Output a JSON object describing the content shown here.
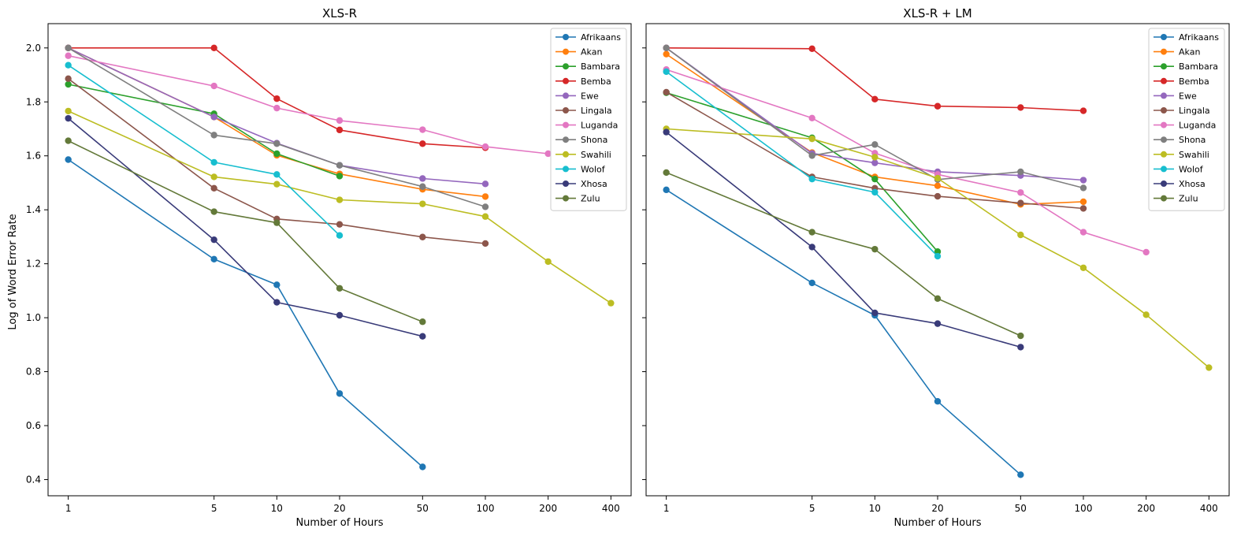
{
  "figure": {
    "ylabel": "Log of Word Error Rate"
  },
  "chart_data": [
    {
      "type": "line",
      "title": "XLS-R",
      "xlabel": "Number of Hours",
      "ylabel": "Log of Word Error Rate",
      "xscale": "log",
      "xticks": [
        1,
        5,
        10,
        20,
        50,
        100,
        200,
        400
      ],
      "yticks": [
        0.4,
        0.6,
        0.8,
        1.0,
        1.2,
        1.4,
        1.6,
        1.8,
        2.0
      ],
      "xlim": [
        0.8,
        500
      ],
      "ylim": [
        0.34,
        2.09
      ],
      "legend_position": "top-right",
      "series": [
        {
          "name": "Afrikaans",
          "color": "#1f77b4",
          "x": [
            1,
            5,
            10,
            20,
            50
          ],
          "y": [
            1.586,
            1.217,
            1.122,
            0.719,
            0.447
          ]
        },
        {
          "name": "Akan",
          "color": "#ff7f0e",
          "x": [
            1,
            5,
            10,
            20,
            50,
            100
          ],
          "y": [
            2.0,
            1.744,
            1.602,
            1.533,
            1.476,
            1.449
          ]
        },
        {
          "name": "Bambara",
          "color": "#2ca02c",
          "x": [
            1,
            5,
            10,
            20
          ],
          "y": [
            1.865,
            1.756,
            1.608,
            1.525
          ]
        },
        {
          "name": "Bemba",
          "color": "#d62728",
          "x": [
            1,
            5,
            10,
            20,
            50,
            100
          ],
          "y": [
            2.0,
            2.0,
            1.812,
            1.696,
            1.645,
            1.63
          ]
        },
        {
          "name": "Ewe",
          "color": "#9467bd",
          "x": [
            1,
            5,
            10,
            20,
            50,
            100
          ],
          "y": [
            2.0,
            1.744,
            1.647,
            1.565,
            1.516,
            1.496
          ]
        },
        {
          "name": "Lingala",
          "color": "#8c564b",
          "x": [
            1,
            5,
            10,
            20,
            50,
            100
          ],
          "y": [
            1.886,
            1.48,
            1.366,
            1.346,
            1.299,
            1.275
          ]
        },
        {
          "name": "Luganda",
          "color": "#e377c2",
          "x": [
            1,
            5,
            10,
            20,
            50,
            100,
            200
          ],
          "y": [
            1.971,
            1.859,
            1.777,
            1.731,
            1.697,
            1.634,
            1.608
          ]
        },
        {
          "name": "Shona",
          "color": "#7f7f7f",
          "x": [
            1,
            5,
            10,
            20,
            50,
            100
          ],
          "y": [
            2.0,
            1.677,
            1.645,
            1.565,
            1.486,
            1.411
          ]
        },
        {
          "name": "Swahili",
          "color": "#bcbd22",
          "x": [
            1,
            5,
            10,
            20,
            50,
            100,
            200,
            400
          ],
          "y": [
            1.766,
            1.522,
            1.495,
            1.437,
            1.422,
            1.375,
            1.208,
            1.054
          ]
        },
        {
          "name": "Wolof",
          "color": "#17becf",
          "x": [
            1,
            5,
            10,
            20
          ],
          "y": [
            1.936,
            1.576,
            1.531,
            1.305
          ]
        },
        {
          "name": "Xhosa",
          "color": "#393b79",
          "x": [
            1,
            5,
            10,
            20,
            50
          ],
          "y": [
            1.739,
            1.289,
            1.057,
            1.009,
            0.931
          ]
        },
        {
          "name": "Zulu",
          "color": "#637939",
          "x": [
            1,
            5,
            10,
            20,
            50
          ],
          "y": [
            1.656,
            1.393,
            1.352,
            1.109,
            0.985
          ]
        }
      ]
    },
    {
      "type": "line",
      "title": "XLS-R + LM",
      "xlabel": "Number of Hours",
      "ylabel": "",
      "xscale": "log",
      "xticks": [
        1,
        5,
        10,
        20,
        50,
        100,
        200,
        400
      ],
      "yticks": [
        0.4,
        0.6,
        0.8,
        1.0,
        1.2,
        1.4,
        1.6,
        1.8,
        2.0
      ],
      "xlim": [
        0.8,
        500
      ],
      "ylim": [
        0.34,
        2.09
      ],
      "legend_position": "top-right",
      "series": [
        {
          "name": "Afrikaans",
          "color": "#1f77b4",
          "x": [
            1,
            5,
            10,
            20,
            50
          ],
          "y": [
            1.474,
            1.129,
            1.009,
            0.69,
            0.418
          ]
        },
        {
          "name": "Akan",
          "color": "#ff7f0e",
          "x": [
            1,
            5,
            10,
            20,
            50,
            100
          ],
          "y": [
            1.977,
            1.612,
            1.522,
            1.489,
            1.42,
            1.43
          ]
        },
        {
          "name": "Bambara",
          "color": "#2ca02c",
          "x": [
            1,
            5,
            10,
            20
          ],
          "y": [
            1.834,
            1.667,
            1.514,
            1.245
          ]
        },
        {
          "name": "Bemba",
          "color": "#d62728",
          "x": [
            1,
            5,
            10,
            20,
            50,
            100
          ],
          "y": [
            2.0,
            1.997,
            1.81,
            1.784,
            1.779,
            1.767
          ]
        },
        {
          "name": "Ewe",
          "color": "#9467bd",
          "x": [
            1,
            5,
            10,
            20,
            50,
            100
          ],
          "y": [
            2.0,
            1.609,
            1.574,
            1.541,
            1.527,
            1.51
          ]
        },
        {
          "name": "Lingala",
          "color": "#8c564b",
          "x": [
            1,
            5,
            10,
            20,
            50,
            100
          ],
          "y": [
            1.836,
            1.522,
            1.48,
            1.45,
            1.425,
            1.405
          ]
        },
        {
          "name": "Luganda",
          "color": "#e377c2",
          "x": [
            1,
            5,
            10,
            20,
            50,
            100,
            200
          ],
          "y": [
            1.92,
            1.74,
            1.61,
            1.531,
            1.464,
            1.317,
            1.243
          ]
        },
        {
          "name": "Shona",
          "color": "#7f7f7f",
          "x": [
            1,
            5,
            10,
            20,
            50,
            100
          ],
          "y": [
            2.0,
            1.601,
            1.642,
            1.512,
            1.541,
            1.481
          ]
        },
        {
          "name": "Swahili",
          "color": "#bcbd22",
          "x": [
            1,
            5,
            10,
            20,
            50,
            100,
            200,
            400
          ],
          "y": [
            1.7,
            1.663,
            1.595,
            1.517,
            1.307,
            1.185,
            1.011,
            0.815
          ]
        },
        {
          "name": "Wolof",
          "color": "#17becf",
          "x": [
            1,
            5,
            10,
            20
          ],
          "y": [
            1.912,
            1.514,
            1.465,
            1.228
          ]
        },
        {
          "name": "Xhosa",
          "color": "#393b79",
          "x": [
            1,
            5,
            10,
            20,
            50
          ],
          "y": [
            1.688,
            1.262,
            1.018,
            0.978,
            0.891
          ]
        },
        {
          "name": "Zulu",
          "color": "#637939",
          "x": [
            1,
            5,
            10,
            20,
            50
          ],
          "y": [
            1.538,
            1.317,
            1.254,
            1.071,
            0.933
          ]
        }
      ]
    }
  ]
}
